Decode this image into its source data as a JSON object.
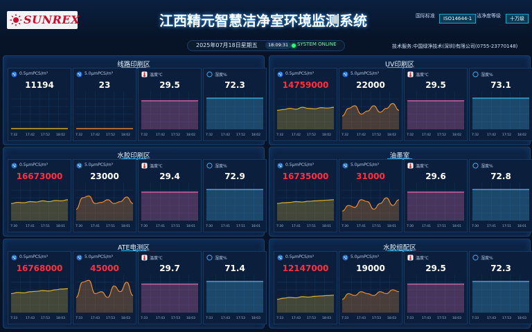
{
  "header": {
    "logo_text": "SUNREX",
    "title": "江西精元智慧洁净室环境监测系统",
    "std_label": "国际标准",
    "std_badge": "ISO14644-1",
    "level_label": "洁净度等级",
    "level_badge": "十万级"
  },
  "status": {
    "date": "2025年07月18日星期五",
    "time": "18:09:31",
    "online": "SYSTEM ONLINE",
    "service": "技术服务:中国绿净技术(深圳)有限公司(0755-23770148)"
  },
  "colors": {
    "gold": "#d9b12e",
    "orange": "#e88b2e",
    "red_value": "#ff2f3f",
    "temp_line": "#e86fb1",
    "hum_line": "#4ab2e6"
  },
  "icons": [
    "particle-icon",
    "particle-icon",
    "thermometer-icon",
    "humidity-icon"
  ],
  "zones": [
    {
      "name": "线路印刷区",
      "cards": [
        {
          "label": "0.5μmPCS/m³",
          "value": "11194",
          "alarm": false,
          "trend": [
            0.02,
            0.02,
            0.02,
            0.02,
            0.02,
            0.02,
            0.02,
            0.02,
            0.02,
            0.02
          ],
          "color": "#d9b12e",
          "ticks": [
            "7:32",
            "17:42",
            "17:52",
            "18:02"
          ]
        },
        {
          "label": "5.0μmPCS/m³",
          "value": "23",
          "alarm": false,
          "trend": [
            0.02,
            0.02,
            0.02,
            0.02,
            0.02,
            0.02,
            0.02,
            0.02,
            0.02,
            0.02
          ],
          "color": "#e88b2e",
          "ticks": [
            "7:32",
            "17:42",
            "17:52",
            "18:02"
          ]
        },
        {
          "label": "温度℃",
          "value": "29.5",
          "alarm": false,
          "trend": [
            0.75,
            0.75,
            0.75,
            0.75,
            0.75,
            0.75,
            0.75,
            0.75,
            0.75,
            0.75
          ],
          "color": "#e86fb1",
          "ticks": [
            "7:32",
            "17:42",
            "17:52",
            "18:02"
          ]
        },
        {
          "label": "湿度%",
          "value": "72.3",
          "alarm": false,
          "trend": [
            0.82,
            0.82,
            0.82,
            0.82,
            0.82,
            0.82,
            0.82,
            0.82,
            0.82,
            0.82
          ],
          "color": "#4ab2e6",
          "ticks": [
            "7:32",
            "17:42",
            "17:52",
            "18:02"
          ]
        }
      ]
    },
    {
      "name": "UV印刷区",
      "cards": [
        {
          "label": "0.5μmPCS/m³",
          "value": "14759000",
          "alarm": true,
          "trend": [
            0.5,
            0.52,
            0.55,
            0.53,
            0.58,
            0.55,
            0.54,
            0.57,
            0.56,
            0.58
          ],
          "color": "#d9b12e",
          "ticks": [
            "7:32",
            "17:42",
            "17:52",
            "18:02"
          ]
        },
        {
          "label": "5.0μmPCS/m³",
          "value": "22000",
          "alarm": false,
          "trend": [
            0.35,
            0.55,
            0.62,
            0.4,
            0.48,
            0.62,
            0.45,
            0.55,
            0.68,
            0.5
          ],
          "color": "#e88b2e",
          "ticks": [
            "7:32",
            "17:42",
            "17:52",
            "18:02"
          ]
        },
        {
          "label": "温度℃",
          "value": "29.5",
          "alarm": false,
          "trend": [
            0.75,
            0.75,
            0.75,
            0.75,
            0.75,
            0.75,
            0.75,
            0.75,
            0.75,
            0.75
          ],
          "color": "#e86fb1",
          "ticks": [
            "7:32",
            "17:42",
            "17:52",
            "18:02"
          ]
        },
        {
          "label": "湿度%",
          "value": "73.1",
          "alarm": false,
          "trend": [
            0.82,
            0.82,
            0.82,
            0.82,
            0.82,
            0.82,
            0.82,
            0.82,
            0.82,
            0.82
          ],
          "color": "#4ab2e6",
          "ticks": [
            "7:32",
            "17:42",
            "17:52",
            "18:02"
          ]
        }
      ]
    },
    {
      "name": "水胶印刷区",
      "cards": [
        {
          "label": "0.5μmPCS/m³",
          "value": "16673000",
          "alarm": true,
          "trend": [
            0.45,
            0.48,
            0.47,
            0.5,
            0.49,
            0.52,
            0.5,
            0.53,
            0.52,
            0.55
          ],
          "color": "#d9b12e",
          "ticks": [
            "7:30",
            "17:41",
            "17:51",
            "18:01"
          ]
        },
        {
          "label": "5.0μmPCS/m³",
          "value": "23000",
          "alarm": false,
          "trend": [
            0.3,
            0.6,
            0.65,
            0.45,
            0.48,
            0.55,
            0.45,
            0.5,
            0.62,
            0.45
          ],
          "color": "#e88b2e",
          "ticks": [
            "7:30",
            "17:41",
            "17:51",
            "18:01"
          ]
        },
        {
          "label": "温度℃",
          "value": "29.4",
          "alarm": false,
          "trend": [
            0.75,
            0.75,
            0.75,
            0.75,
            0.75,
            0.75,
            0.75,
            0.75,
            0.75,
            0.75
          ],
          "color": "#e86fb1",
          "ticks": [
            "7:30",
            "17:41",
            "17:51",
            "18:01"
          ]
        },
        {
          "label": "湿度%",
          "value": "72.9",
          "alarm": false,
          "trend": [
            0.82,
            0.82,
            0.82,
            0.82,
            0.82,
            0.82,
            0.82,
            0.82,
            0.82,
            0.82
          ],
          "color": "#4ab2e6",
          "ticks": [
            "7:30",
            "17:41",
            "17:51",
            "18:01"
          ]
        }
      ]
    },
    {
      "name": "油墨室",
      "cards": [
        {
          "label": "0.5μmPCS/m³",
          "value": "16735000",
          "alarm": true,
          "trend": [
            0.45,
            0.47,
            0.48,
            0.5,
            0.49,
            0.51,
            0.52,
            0.53,
            0.54,
            0.55
          ],
          "color": "#d9b12e",
          "ticks": [
            "7:30",
            "17:41",
            "17:51",
            "18:01"
          ]
        },
        {
          "label": "5.0μmPCS/m³",
          "value": "31000",
          "alarm": true,
          "trend": [
            0.25,
            0.4,
            0.35,
            0.55,
            0.5,
            0.3,
            0.45,
            0.6,
            0.4,
            0.55
          ],
          "color": "#e88b2e",
          "ticks": [
            "7:30",
            "17:41",
            "17:51",
            "18:01"
          ]
        },
        {
          "label": "温度℃",
          "value": "29.6",
          "alarm": false,
          "trend": [
            0.75,
            0.75,
            0.75,
            0.75,
            0.75,
            0.75,
            0.75,
            0.75,
            0.75,
            0.75
          ],
          "color": "#e86fb1",
          "ticks": [
            "7:30",
            "17:41",
            "17:51",
            "18:01"
          ]
        },
        {
          "label": "湿度%",
          "value": "72.8",
          "alarm": false,
          "trend": [
            0.82,
            0.82,
            0.82,
            0.82,
            0.82,
            0.82,
            0.82,
            0.82,
            0.82,
            0.82
          ],
          "color": "#4ab2e6",
          "ticks": [
            "7:30",
            "17:41",
            "17:51",
            "18:01"
          ]
        }
      ]
    },
    {
      "name": "ATE电测区",
      "cards": [
        {
          "label": "0.5μmPCS/m³",
          "value": "16768000",
          "alarm": true,
          "trend": [
            0.5,
            0.53,
            0.52,
            0.55,
            0.56,
            0.58,
            0.57,
            0.6,
            0.62,
            0.63
          ],
          "color": "#d9b12e",
          "ticks": [
            "7:33",
            "17:43",
            "17:53",
            "18:03"
          ]
        },
        {
          "label": "5.0μmPCS/m³",
          "value": "45000",
          "alarm": true,
          "trend": [
            0.4,
            0.8,
            0.85,
            0.5,
            0.55,
            0.4,
            0.7,
            0.55,
            0.8,
            0.45
          ],
          "color": "#e88b2e",
          "ticks": [
            "7:33",
            "17:43",
            "17:53",
            "18:03"
          ]
        },
        {
          "label": "温度℃",
          "value": "29.7",
          "alarm": false,
          "trend": [
            0.75,
            0.75,
            0.75,
            0.75,
            0.75,
            0.75,
            0.75,
            0.75,
            0.75,
            0.75
          ],
          "color": "#e86fb1",
          "ticks": [
            "7:33",
            "17:43",
            "17:53",
            "18:03"
          ]
        },
        {
          "label": "湿度%",
          "value": "71.4",
          "alarm": false,
          "trend": [
            0.82,
            0.82,
            0.82,
            0.82,
            0.82,
            0.82,
            0.82,
            0.82,
            0.82,
            0.82
          ],
          "color": "#4ab2e6",
          "ticks": [
            "7:33",
            "17:43",
            "17:53",
            "18:03"
          ]
        }
      ]
    },
    {
      "name": "水胶组配区",
      "cards": [
        {
          "label": "0.5μmPCS/m³",
          "value": "12147000",
          "alarm": true,
          "trend": [
            0.35,
            0.38,
            0.4,
            0.39,
            0.42,
            0.41,
            0.43,
            0.44,
            0.45,
            0.46
          ],
          "color": "#d9b12e",
          "ticks": [
            "7:33",
            "17:43",
            "17:53",
            "18:03"
          ]
        },
        {
          "label": "5.0μmPCS/m³",
          "value": "19000",
          "alarm": false,
          "trend": [
            0.35,
            0.5,
            0.45,
            0.55,
            0.5,
            0.45,
            0.55,
            0.5,
            0.6,
            0.55
          ],
          "color": "#e88b2e",
          "ticks": [
            "7:33",
            "17:43",
            "17:53",
            "18:03"
          ]
        },
        {
          "label": "温度℃",
          "value": "29.5",
          "alarm": false,
          "trend": [
            0.75,
            0.75,
            0.75,
            0.75,
            0.75,
            0.75,
            0.75,
            0.75,
            0.75,
            0.75
          ],
          "color": "#e86fb1",
          "ticks": [
            "7:33",
            "17:43",
            "17:53",
            "18:03"
          ]
        },
        {
          "label": "湿度%",
          "value": "72.3",
          "alarm": false,
          "trend": [
            0.82,
            0.82,
            0.82,
            0.82,
            0.82,
            0.82,
            0.82,
            0.82,
            0.82,
            0.82
          ],
          "color": "#4ab2e6",
          "ticks": [
            "7:33",
            "17:43",
            "17:53",
            "18:03"
          ]
        }
      ]
    }
  ]
}
